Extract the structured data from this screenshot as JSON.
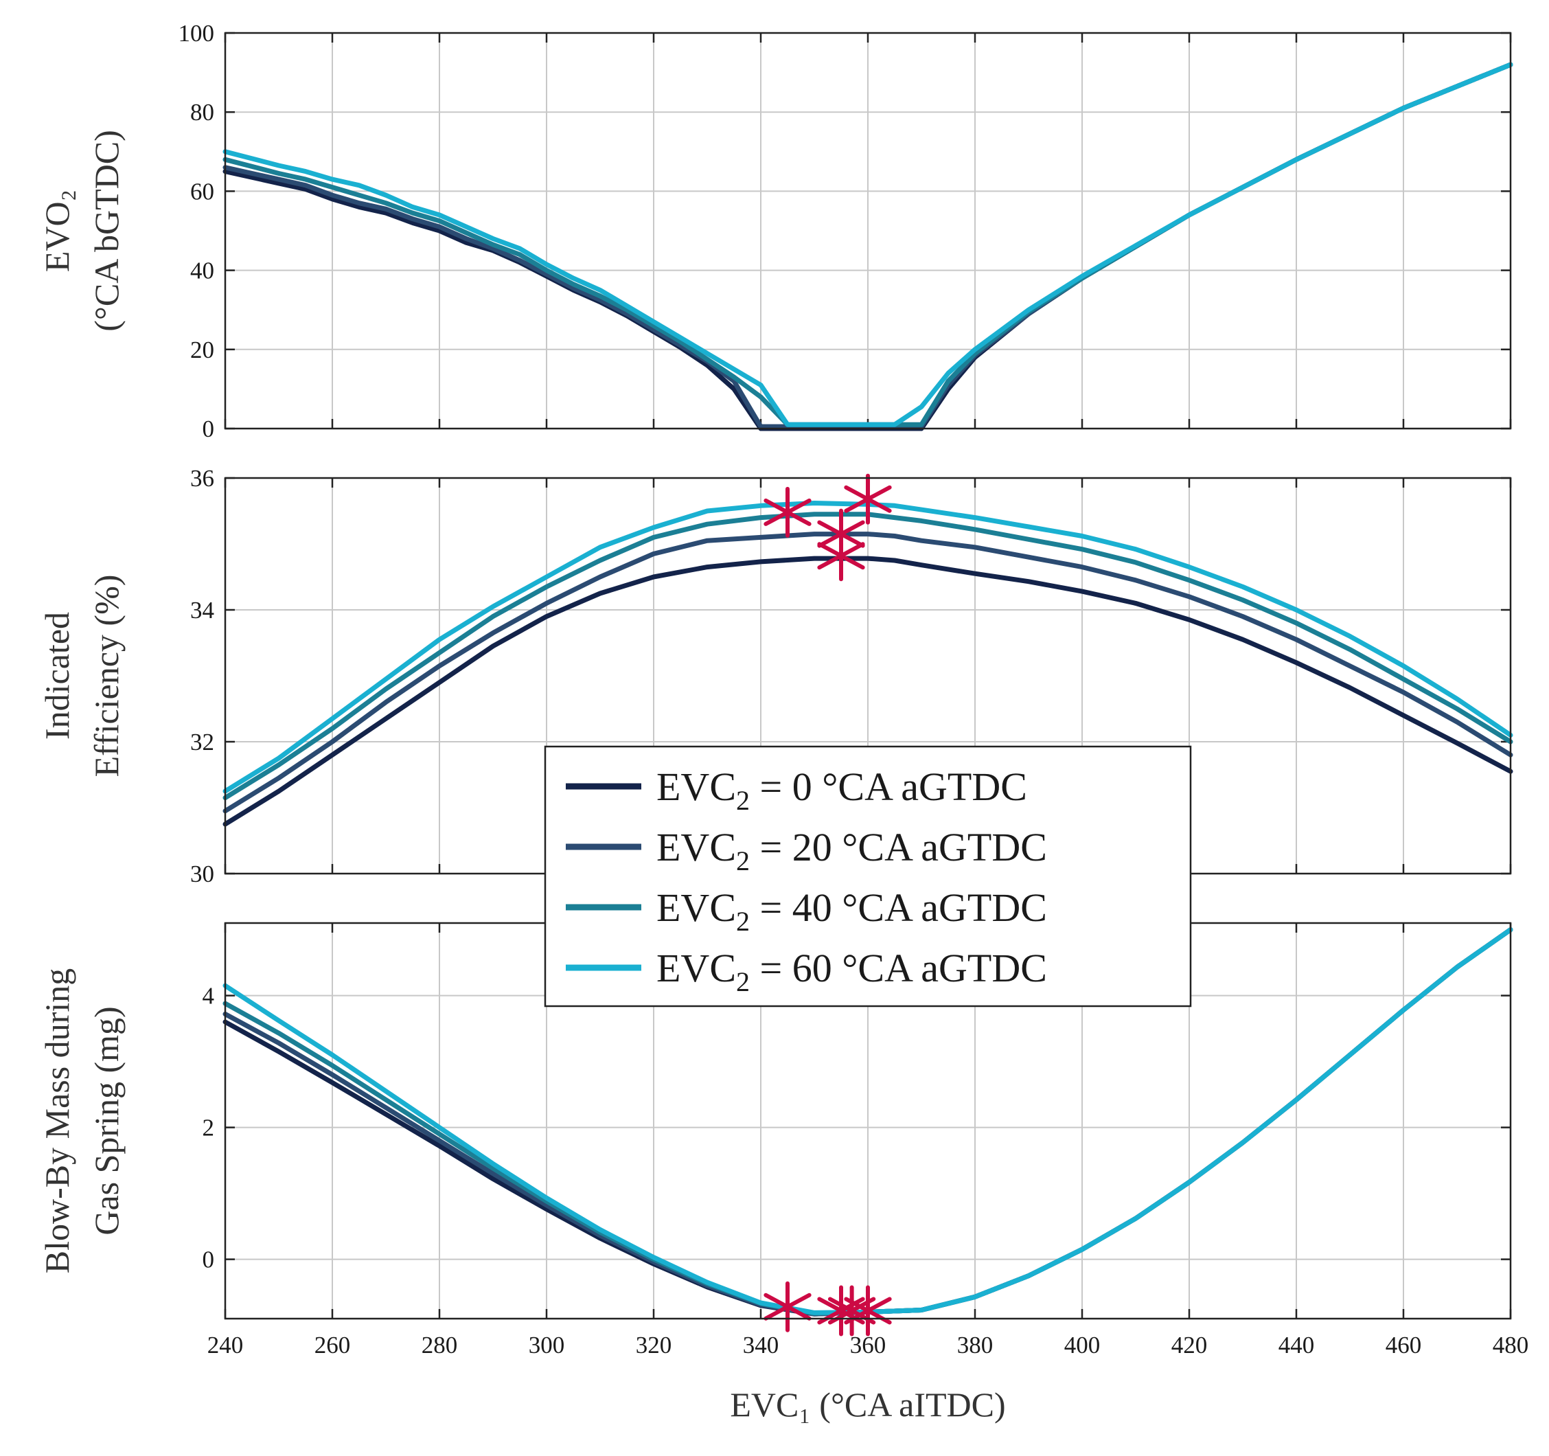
{
  "colors": {
    "series": [
      "#13234a",
      "#2b4b72",
      "#1b7f95",
      "#1ab0d1"
    ],
    "marker": "#cc0a44"
  },
  "chart_data": [
    {
      "type": "line",
      "panel": "top",
      "xlim": [
        240,
        480
      ],
      "ylim": [
        0,
        100
      ],
      "xticks": [
        240,
        260,
        280,
        300,
        320,
        340,
        360,
        380,
        400,
        420,
        440,
        460,
        480
      ],
      "yticks": [
        0,
        20,
        40,
        60,
        80,
        100
      ],
      "ylabel_lines": [
        "EVO₂",
        "(°CA bGTDC)"
      ],
      "grid": true,
      "x": [
        240,
        250,
        255,
        260,
        265,
        270,
        275,
        280,
        285,
        290,
        295,
        300,
        305,
        310,
        315,
        320,
        325,
        330,
        335,
        340,
        345,
        350,
        355,
        360,
        365,
        370,
        375,
        380,
        390,
        400,
        420,
        440,
        460,
        480
      ],
      "series": [
        {
          "values": [
            65,
            62,
            60.5,
            58,
            56,
            54.5,
            52,
            50,
            47,
            45,
            42,
            38.5,
            35,
            32,
            28.5,
            24.5,
            20.5,
            16,
            10,
            0,
            0,
            0,
            0,
            0,
            0,
            0,
            10,
            18,
            29,
            38,
            54,
            68,
            81,
            92
          ]
        },
        {
          "values": [
            66,
            63,
            61.5,
            59,
            57,
            55.5,
            53,
            51,
            48,
            45.5,
            42.5,
            39,
            35.5,
            32.5,
            29,
            25,
            21,
            17,
            12,
            0.5,
            0.5,
            0.5,
            0.5,
            0.5,
            0.5,
            0.5,
            11,
            18.5,
            29,
            38,
            54,
            68,
            81,
            92
          ]
        },
        {
          "values": [
            68,
            64.5,
            63,
            61,
            59,
            57,
            54.5,
            52.5,
            49.5,
            46.5,
            44,
            40,
            36.5,
            33.5,
            30,
            26,
            22,
            17.5,
            13,
            8,
            1,
            1,
            1,
            1,
            1,
            1,
            12,
            19,
            29.5,
            38,
            54,
            68,
            81,
            92
          ]
        },
        {
          "values": [
            70,
            66.5,
            65,
            63,
            61.5,
            59,
            56,
            54,
            51,
            48,
            45.5,
            41.5,
            38,
            35,
            31,
            27,
            23,
            19,
            15,
            11,
            1,
            1,
            1,
            1,
            1,
            5.5,
            14,
            20,
            30,
            38.5,
            54,
            68,
            81,
            92
          ]
        }
      ]
    },
    {
      "type": "line",
      "panel": "middle",
      "xlim": [
        240,
        480
      ],
      "ylim": [
        30,
        36
      ],
      "xticks": [
        240,
        260,
        280,
        300,
        320,
        340,
        360,
        380,
        400,
        420,
        440,
        460,
        480
      ],
      "yticks": [
        30,
        32,
        34,
        36
      ],
      "ylabel_lines": [
        "Indicated",
        "Efficiency (%)"
      ],
      "grid": true,
      "x": [
        240,
        250,
        260,
        270,
        280,
        290,
        300,
        310,
        320,
        330,
        340,
        350,
        360,
        365,
        370,
        380,
        390,
        400,
        410,
        420,
        430,
        440,
        450,
        460,
        470,
        480
      ],
      "series": [
        {
          "values": [
            30.75,
            31.25,
            31.8,
            32.35,
            32.9,
            33.45,
            33.9,
            34.25,
            34.5,
            34.65,
            34.73,
            34.78,
            34.78,
            34.75,
            34.68,
            34.55,
            34.43,
            34.28,
            34.1,
            33.85,
            33.55,
            33.2,
            32.82,
            32.4,
            31.98,
            31.55
          ]
        },
        {
          "values": [
            30.95,
            31.45,
            32.0,
            32.6,
            33.15,
            33.65,
            34.1,
            34.5,
            34.85,
            35.05,
            35.1,
            35.15,
            35.15,
            35.12,
            35.05,
            34.95,
            34.8,
            34.65,
            34.45,
            34.2,
            33.9,
            33.55,
            33.15,
            32.75,
            32.3,
            31.8
          ]
        },
        {
          "values": [
            31.15,
            31.65,
            32.2,
            32.8,
            33.35,
            33.9,
            34.35,
            34.75,
            35.1,
            35.3,
            35.4,
            35.45,
            35.45,
            35.4,
            35.35,
            35.22,
            35.07,
            34.92,
            34.72,
            34.45,
            34.15,
            33.8,
            33.4,
            32.95,
            32.5,
            32.0
          ]
        },
        {
          "values": [
            31.25,
            31.75,
            32.35,
            32.95,
            33.55,
            34.05,
            34.5,
            34.95,
            35.25,
            35.5,
            35.58,
            35.62,
            35.6,
            35.58,
            35.52,
            35.4,
            35.26,
            35.12,
            34.92,
            34.65,
            34.35,
            34.0,
            33.6,
            33.15,
            32.65,
            32.1
          ]
        }
      ],
      "optimum_markers": [
        {
          "x": 345,
          "y": 35.48
        },
        {
          "x": 355,
          "y": 34.82
        },
        {
          "x": 355,
          "y": 35.15
        },
        {
          "x": 360,
          "y": 35.68
        }
      ]
    },
    {
      "type": "line",
      "panel": "bottom",
      "xlim": [
        240,
        480
      ],
      "ylim": [
        -0.9,
        5.1
      ],
      "xticks": [
        240,
        260,
        280,
        300,
        320,
        340,
        360,
        380,
        400,
        420,
        440,
        460,
        480
      ],
      "xtick_labels": [
        "240",
        "260",
        "280",
        "300",
        "320",
        "340",
        "360",
        "380",
        "400",
        "420",
        "440",
        "460",
        "480"
      ],
      "yticks": [
        0,
        2,
        4
      ],
      "ylabel_lines": [
        "Blow-By Mass during",
        "Gas Spring (mg)"
      ],
      "xlabel": "EVC₁ (°CA aITDC)",
      "grid": true,
      "x": [
        240,
        250,
        260,
        270,
        280,
        290,
        300,
        310,
        320,
        330,
        340,
        350,
        360,
        370,
        380,
        390,
        400,
        410,
        420,
        430,
        440,
        450,
        460,
        470,
        480
      ],
      "series": [
        {
          "values": [
            3.6,
            3.15,
            2.68,
            2.2,
            1.72,
            1.22,
            0.76,
            0.32,
            -0.07,
            -0.42,
            -0.7,
            -0.83,
            -0.8,
            -0.77,
            -0.57,
            -0.25,
            0.15,
            0.62,
            1.17,
            1.77,
            2.42,
            3.1,
            3.78,
            4.43,
            5.0
          ]
        },
        {
          "values": [
            3.72,
            3.28,
            2.8,
            2.3,
            1.8,
            1.3,
            0.82,
            0.36,
            -0.04,
            -0.4,
            -0.69,
            -0.83,
            -0.8,
            -0.77,
            -0.57,
            -0.25,
            0.15,
            0.62,
            1.17,
            1.77,
            2.42,
            3.1,
            3.78,
            4.43,
            5.0
          ]
        },
        {
          "values": [
            3.88,
            3.43,
            2.94,
            2.42,
            1.9,
            1.38,
            0.88,
            0.41,
            0.0,
            -0.37,
            -0.67,
            -0.82,
            -0.8,
            -0.77,
            -0.57,
            -0.25,
            0.15,
            0.62,
            1.17,
            1.77,
            2.42,
            3.1,
            3.78,
            4.43,
            5.0
          ]
        },
        {
          "values": [
            4.15,
            3.62,
            3.1,
            2.55,
            2.0,
            1.45,
            0.93,
            0.45,
            0.03,
            -0.35,
            -0.66,
            -0.81,
            -0.8,
            -0.77,
            -0.57,
            -0.25,
            0.15,
            0.62,
            1.17,
            1.77,
            2.42,
            3.1,
            3.78,
            4.43,
            5.0
          ]
        }
      ],
      "optimum_markers": [
        {
          "x": 345,
          "y": -0.72
        },
        {
          "x": 355,
          "y": -0.78
        },
        {
          "x": 357,
          "y": -0.78
        },
        {
          "x": 360,
          "y": -0.78
        }
      ]
    }
  ],
  "legend": {
    "placement": "center",
    "entries": [
      {
        "prefix": "EVC",
        "sub": "2",
        "suffix": " = 0 °CA aGTDC"
      },
      {
        "prefix": "EVC",
        "sub": "2",
        "suffix": " = 20 °CA aGTDC"
      },
      {
        "prefix": "EVC",
        "sub": "2",
        "suffix": " = 40 °CA aGTDC"
      },
      {
        "prefix": "EVC",
        "sub": "2",
        "suffix": " = 60 °CA aGTDC"
      }
    ]
  }
}
